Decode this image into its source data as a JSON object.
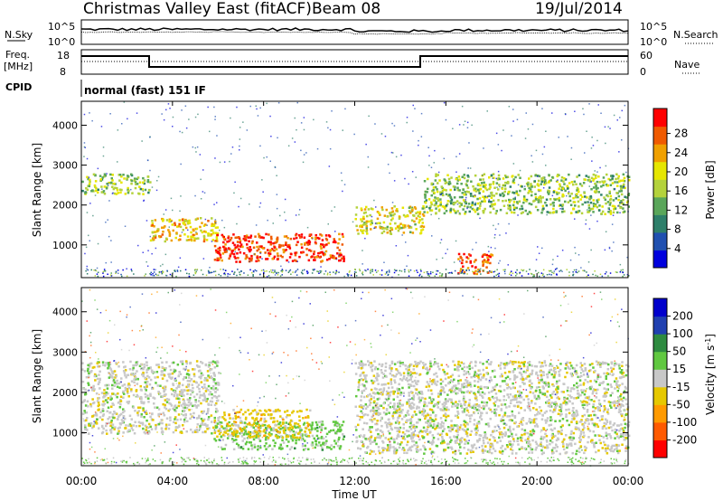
{
  "header": {
    "station": "Christmas Valley East (fitACF)",
    "beam": "Beam 08",
    "date": "19/Jul/2014"
  },
  "noise_panel": {
    "left_label": "N.Sky",
    "right_label": "N.Search",
    "left_ticks": [
      "10^5",
      "10^0"
    ],
    "right_ticks": [
      "10^5",
      "10^0"
    ]
  },
  "freq_panel": {
    "left_label_1": "Freq.",
    "left_label_2": "[MHz]",
    "right_label": "Nave",
    "left_ticks": [
      "18",
      "8"
    ],
    "right_ticks": [
      "60",
      "0"
    ]
  },
  "cpid": {
    "label": "CPID",
    "mode": "normal (fast) 151 IF"
  },
  "colors": {
    "power": [
      "#0000dd",
      "#2050b0",
      "#2e7f6a",
      "#5aa65a",
      "#b4d23c",
      "#e6e600",
      "#f0a000",
      "#f05a00",
      "#ff0000"
    ],
    "velocity": [
      "#ff0000",
      "#ff5a00",
      "#ff9a00",
      "#e6c800",
      "#c8c8c8",
      "#60c840",
      "#2e8b40",
      "#2040b0",
      "#0000cc"
    ]
  },
  "chart_data": [
    {
      "type": "heatmap",
      "name": "power",
      "ylabel": "Slant Range [km]",
      "y_ticks": [
        1000,
        2000,
        3000,
        4000
      ],
      "ylim": [
        180,
        4600
      ],
      "xlim": [
        0,
        24
      ],
      "x_ticks": [
        "00:00",
        "04:00",
        "08:00",
        "12:00",
        "16:00",
        "20:00",
        "00:00"
      ],
      "colorbar": {
        "label": "Power [dB]",
        "ticks": [
          "4",
          "8",
          "12",
          "16",
          "20",
          "24",
          "28"
        ],
        "range": [
          0,
          30
        ]
      },
      "features": [
        {
          "hours": [
            0,
            3
          ],
          "range_km": [
            2300,
            2800
          ],
          "level_db": 14
        },
        {
          "hours": [
            3,
            6
          ],
          "range_km": [
            1100,
            1700
          ],
          "level_db": 20
        },
        {
          "hours": [
            5.8,
            11.5
          ],
          "range_km": [
            600,
            1300
          ],
          "level_db": 28
        },
        {
          "hours": [
            12,
            15
          ],
          "range_km": [
            1300,
            2000
          ],
          "level_db": 18
        },
        {
          "hours": [
            15,
            24
          ],
          "range_km": [
            1800,
            2800
          ],
          "level_db": 14
        },
        {
          "hours": [
            16.5,
            18
          ],
          "range_km": [
            300,
            800
          ],
          "level_db": 26
        }
      ]
    },
    {
      "type": "heatmap",
      "name": "velocity",
      "ylabel": "Slant Range [km]",
      "y_ticks": [
        1000,
        2000,
        3000,
        4000
      ],
      "ylim": [
        180,
        4600
      ],
      "xlim": [
        0,
        24
      ],
      "xlabel": "Time UT",
      "x_ticks": [
        "00:00",
        "04:00",
        "08:00",
        "12:00",
        "16:00",
        "20:00",
        "00:00"
      ],
      "colorbar": {
        "label": "Velocity [m s^-1]",
        "ticks": [
          "200",
          "100",
          "50",
          "15",
          "-15",
          "-50",
          "-100",
          "-200"
        ],
        "range": [
          -250,
          250
        ]
      },
      "features": [
        {
          "hours": [
            0,
            6
          ],
          "range_km": [
            1000,
            2800
          ],
          "level_ms": 0
        },
        {
          "hours": [
            5.8,
            11.5
          ],
          "range_km": [
            600,
            1300
          ],
          "level_ms": 50
        },
        {
          "hours": [
            12,
            24
          ],
          "range_km": [
            500,
            2800
          ],
          "level_ms": 0
        },
        {
          "hours": [
            5.8,
            10
          ],
          "range_km": [
            900,
            1600
          ],
          "level_ms": -60
        }
      ]
    }
  ]
}
